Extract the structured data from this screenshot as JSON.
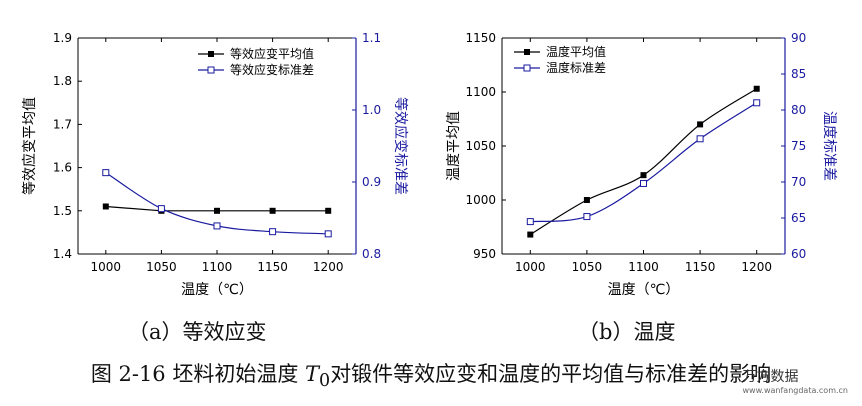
{
  "chart_data": [
    {
      "type": "line",
      "id": "a",
      "x": [
        1000,
        1050,
        1100,
        1150,
        1200
      ],
      "xlim": [
        975,
        1225
      ],
      "xticks": [
        1000,
        1050,
        1100,
        1150,
        1200
      ],
      "xlabel": "温度（℃）",
      "ylabel": "等效应变平均值",
      "ylim": [
        1.4,
        1.9
      ],
      "yticks": [
        "1.4",
        "1.5",
        "1.6",
        "1.7",
        "1.8",
        "1.9"
      ],
      "y2label": "等效应变标准差",
      "y2lim": [
        0.8,
        1.1
      ],
      "y2ticks": [
        "0.8",
        "0.9",
        "1.0",
        "1.1"
      ],
      "series": [
        {
          "name": "等效应变平均值",
          "axis": "left",
          "marker": "filled-square",
          "color": "#000000",
          "values": [
            1.51,
            1.5,
            1.5,
            1.5,
            1.5
          ],
          "smooth": false
        },
        {
          "name": "等效应变标准差",
          "axis": "right",
          "marker": "open-square",
          "color": "#1a1aa0",
          "values": [
            0.913,
            0.863,
            0.839,
            0.831,
            0.828
          ],
          "smooth": true
        }
      ],
      "legend": "top-right",
      "caption": "（a）等效应变"
    },
    {
      "type": "line",
      "id": "b",
      "x": [
        1000,
        1050,
        1100,
        1150,
        1200
      ],
      "xlim": [
        975,
        1225
      ],
      "xticks": [
        1000,
        1050,
        1100,
        1150,
        1200
      ],
      "xlabel": "温度（℃）",
      "ylabel": "温度平均值",
      "ylim": [
        950,
        1150
      ],
      "yticks": [
        "950",
        "1000",
        "1050",
        "1100",
        "1150"
      ],
      "y2label": "温度标准差",
      "y2lim": [
        60,
        90
      ],
      "y2ticks": [
        "60",
        "65",
        "70",
        "75",
        "80",
        "85",
        "90"
      ],
      "series": [
        {
          "name": "温度平均值",
          "axis": "left",
          "marker": "filled-square",
          "color": "#000000",
          "values": [
            968,
            1000,
            1023,
            1070,
            1103
          ],
          "smooth": true
        },
        {
          "name": "温度标准差",
          "axis": "right",
          "marker": "open-square",
          "color": "#1a1aa0",
          "values": [
            64.5,
            65.2,
            69.8,
            76.0,
            81.0
          ],
          "smooth": true
        }
      ],
      "legend": "top-left",
      "caption": "（b）温度"
    }
  ],
  "figure": {
    "caption_prefix": "图 2-16 坯料初始温度 ",
    "caption_symbol": "T",
    "caption_subscript": "0",
    "caption_suffix": "对锻件等效应变和温度的平均值与标准差的影响",
    "watermark": "万方数据",
    "watermark_url": "www.wanfangdata.com.cn"
  },
  "colors": {
    "primary": "#000000",
    "secondary": "#1a1aa0"
  }
}
